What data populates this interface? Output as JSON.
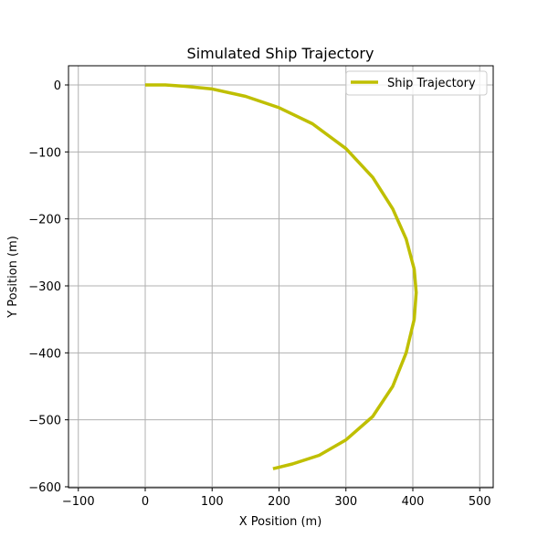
{
  "chart_data": {
    "type": "line",
    "title": "Simulated Ship Trajectory",
    "xlabel": "X Position (m)",
    "ylabel": "Y Position (m)",
    "xlim": [
      -115,
      520
    ],
    "ylim": [
      -602,
      29
    ],
    "xticks": [
      -100,
      0,
      100,
      200,
      300,
      400,
      500
    ],
    "yticks": [
      0,
      -100,
      -200,
      -300,
      -400,
      -500,
      -600
    ],
    "xtick_labels": [
      "−100",
      "0",
      "100",
      "200",
      "300",
      "400",
      "500"
    ],
    "ytick_labels": [
      "0",
      "−100",
      "−200",
      "−300",
      "−400",
      "−500",
      "−600"
    ],
    "grid": true,
    "legend_position": "upper right",
    "series": [
      {
        "name": "Ship Trajectory",
        "color": "#bfbf00",
        "x": [
          0,
          30,
          60,
          100,
          150,
          200,
          250,
          300,
          340,
          370,
          390,
          402,
          405,
          402,
          390,
          370,
          340,
          300,
          260,
          220,
          191
        ],
        "y": [
          0,
          0,
          -2,
          -6,
          -17,
          -34,
          -58,
          -95,
          -138,
          -185,
          -230,
          -275,
          -310,
          -350,
          -400,
          -450,
          -495,
          -530,
          -553,
          -566,
          -573
        ]
      }
    ]
  }
}
